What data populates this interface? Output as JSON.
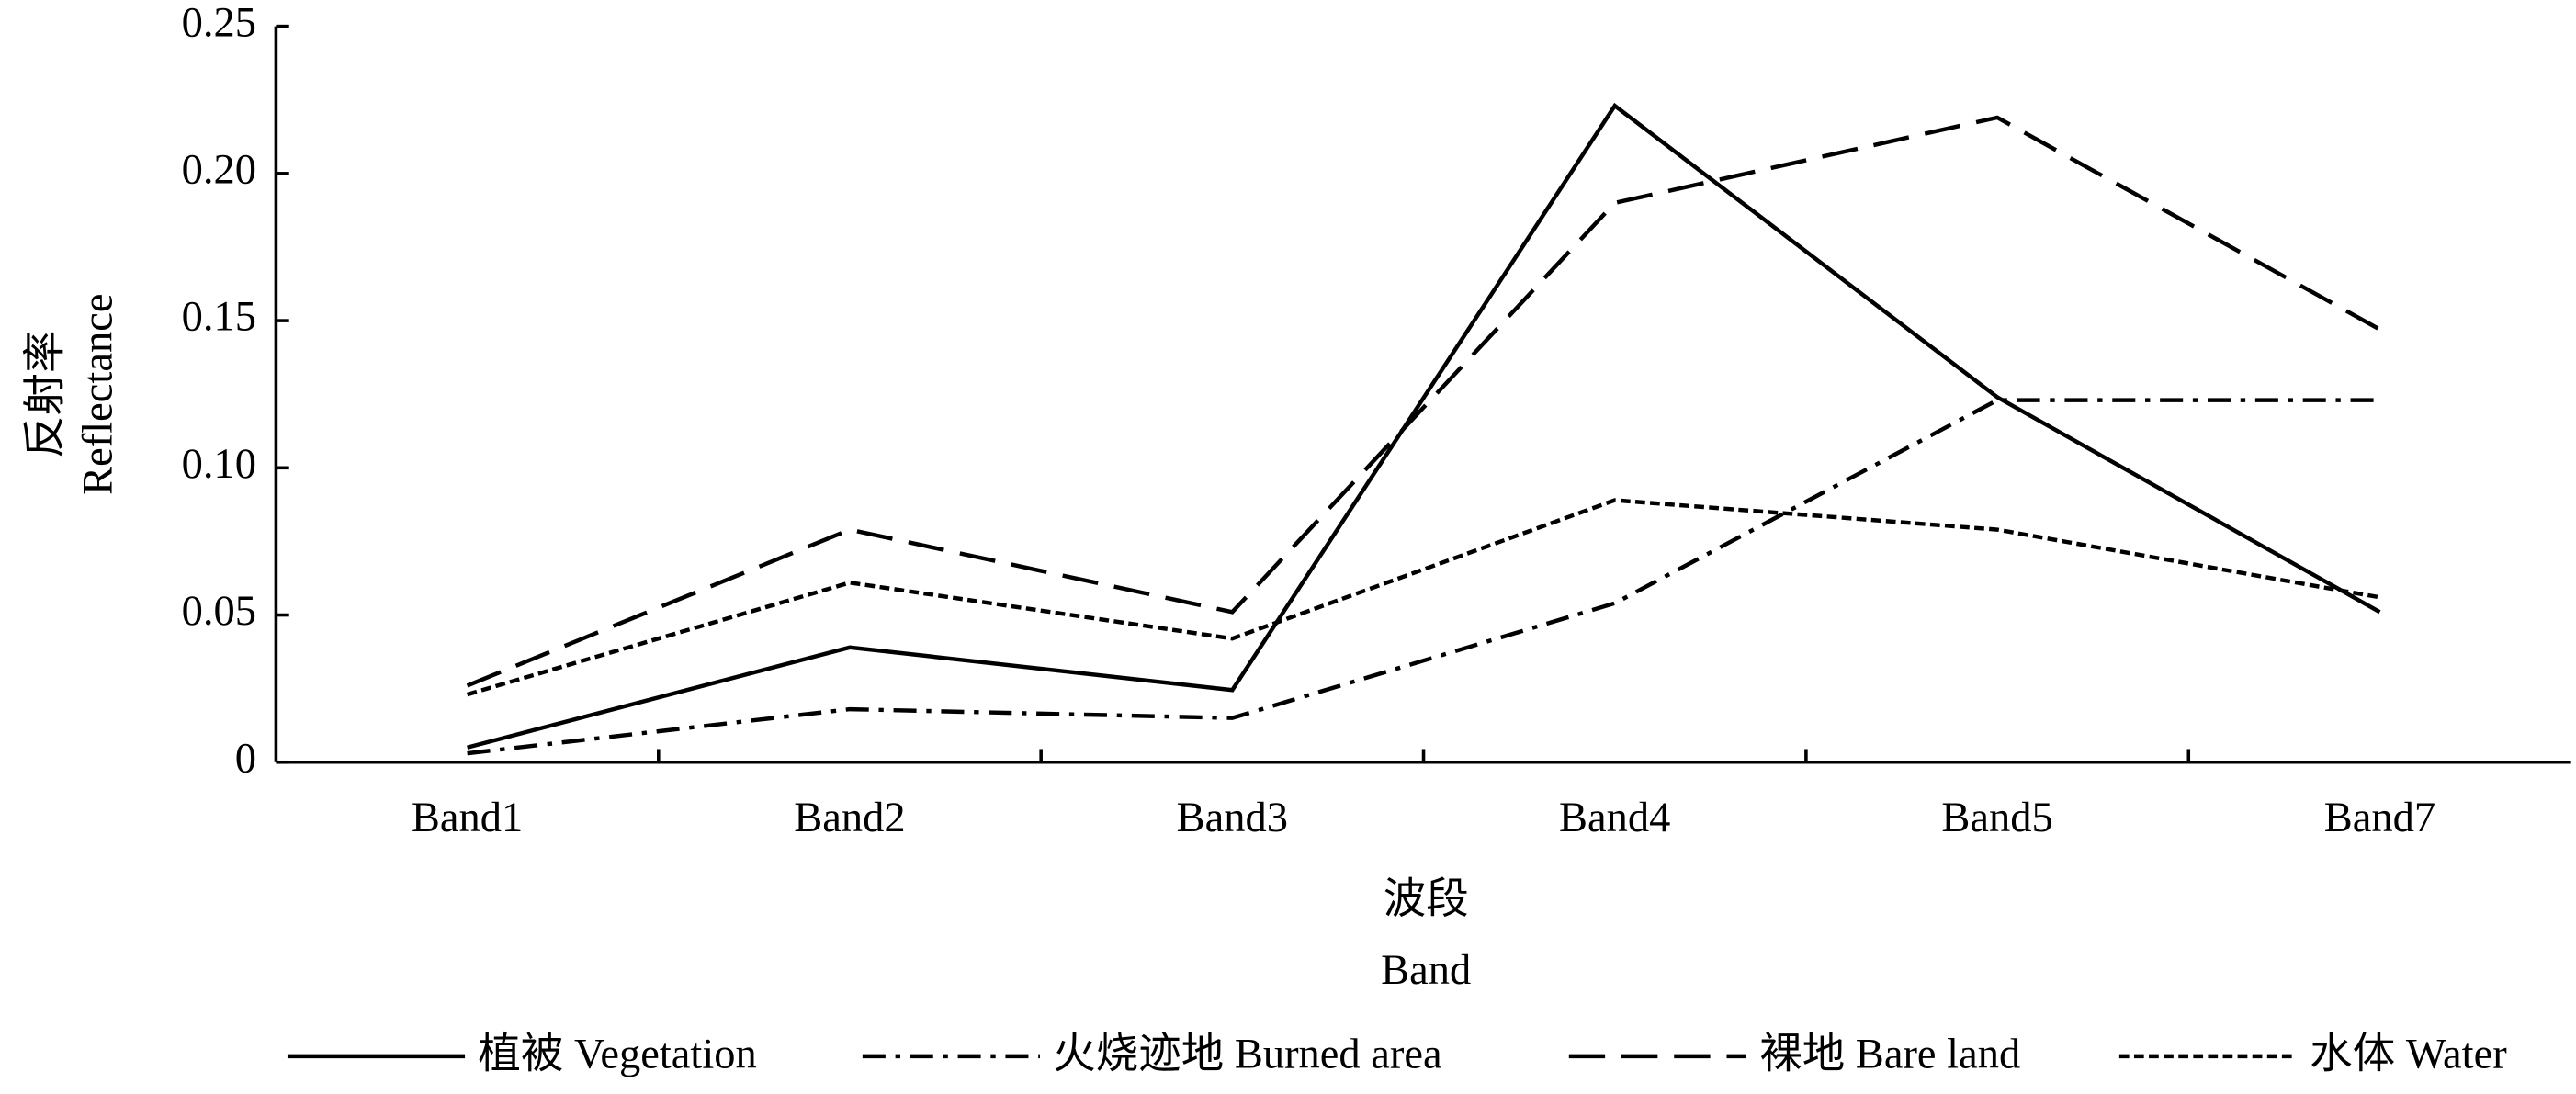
{
  "chart_data": {
    "type": "line",
    "categories": [
      "Band1",
      "Band2",
      "Band3",
      "Band4",
      "Band5",
      "Band7"
    ],
    "series": [
      {
        "name": "植被 Vegetation",
        "color": "#000000",
        "line_style": "solid",
        "values": [
          0.005,
          0.039,
          0.0245,
          0.223,
          0.124,
          0.051
        ]
      },
      {
        "name": "火烧迹地 Burned area",
        "color": "#000000",
        "line_style": "dashdot",
        "values": [
          0.003,
          0.018,
          0.015,
          0.054,
          0.123,
          0.123
        ]
      },
      {
        "name": "裸地 Bare land",
        "color": "#000000",
        "line_style": "dashed",
        "values": [
          0.026,
          0.079,
          0.051,
          0.19,
          0.219,
          0.147
        ]
      },
      {
        "name": "水体 Water",
        "color": "#000000",
        "line_style": "dotted",
        "values": [
          0.023,
          0.061,
          0.042,
          0.089,
          0.079,
          0.056
        ]
      }
    ],
    "ylim": [
      0,
      0.25
    ],
    "yticks": [
      0,
      0.05,
      {
        "value": 0.1,
        "label": "0.10"
      },
      0.15,
      {
        "value": 0.2,
        "label": "0.20"
      },
      0.25
    ],
    "ylabel": [
      "反射率",
      "Reflectance"
    ],
    "xlabel": [
      "波段",
      "Band"
    ],
    "grid": false,
    "legend": "bottom"
  }
}
